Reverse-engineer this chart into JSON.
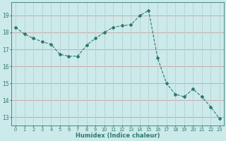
{
  "x": [
    0,
    1,
    2,
    3,
    4,
    5,
    6,
    7,
    8,
    9,
    10,
    11,
    12,
    13,
    14,
    15,
    16,
    17,
    18,
    19,
    20,
    21,
    22,
    23
  ],
  "y": [
    18.3,
    17.9,
    17.65,
    17.45,
    17.3,
    16.7,
    16.6,
    16.6,
    17.25,
    17.65,
    18.0,
    18.3,
    18.4,
    18.45,
    19.0,
    19.3,
    16.5,
    15.0,
    14.35,
    14.2,
    14.65,
    14.2,
    13.6,
    12.9
  ],
  "line_color": "#2d7a6e",
  "marker": "D",
  "marker_size": 2.0,
  "bg_color": "#cceaea",
  "grid_color_h": "#c8a8a8",
  "grid_color_v": "#b8d4d4",
  "tick_color": "#2d7a6e",
  "xlabel": "Humidex (Indice chaleur)",
  "xlim": [
    -0.5,
    23.5
  ],
  "ylim": [
    12.5,
    19.8
  ],
  "yticks": [
    13,
    14,
    15,
    16,
    17,
    18,
    19
  ],
  "xtick_labels": [
    "0",
    "1",
    "2",
    "3",
    "4",
    "5",
    "6",
    "7",
    "8",
    "9",
    "10",
    "11",
    "12",
    "13",
    "14",
    "15",
    "16",
    "17",
    "18",
    "19",
    "20",
    "21",
    "22",
    "23"
  ],
  "font_color": "#2d7a6e"
}
